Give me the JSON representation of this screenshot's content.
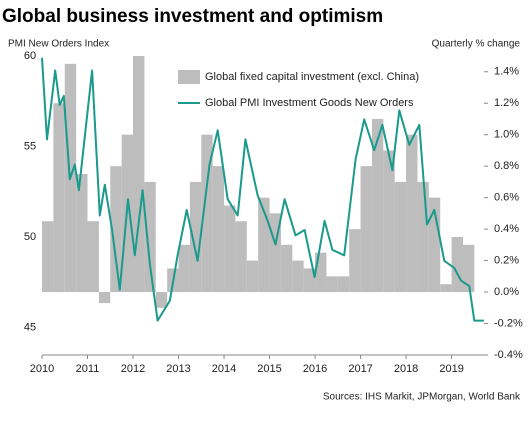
{
  "chart_data": {
    "type": "combo",
    "title": "Global business investment and optimism",
    "y_label": "PMI New Orders Index",
    "y2_label": "Quarterly  % change",
    "source": "Sources: IHS Markit, JPMorgan, World Bank",
    "xlim": [
      2010,
      2019.8
    ],
    "xticks": [
      2010,
      2011,
      2012,
      2013,
      2014,
      2015,
      2016,
      2017,
      2018,
      2019
    ],
    "ylim": [
      43.5,
      60
    ],
    "yticks": [
      45,
      50,
      55,
      60
    ],
    "y2lim": [
      -0.4,
      1.5
    ],
    "y2ticks": [
      {
        "value": -0.4,
        "label": "-0.4%"
      },
      {
        "value": -0.2,
        "label": "-0.2%"
      },
      {
        "value": 0,
        "label": "0.0%"
      },
      {
        "value": 0.2,
        "label": "0.2%"
      },
      {
        "value": 0.4,
        "label": "0.4%"
      },
      {
        "value": 0.6,
        "label": "0.6%"
      },
      {
        "value": 0.8,
        "label": "0.8%"
      },
      {
        "value": 1.0,
        "label": "1.0%"
      },
      {
        "value": 1.2,
        "label": "1.2%"
      },
      {
        "value": 1.4,
        "label": "1.4%"
      }
    ],
    "series": [
      {
        "name": "Global fixed capital investment (excl. China)",
        "type": "bar",
        "axis": "y2",
        "color": "#bdbdbd",
        "x": [
          2010,
          2010.25,
          2010.5,
          2010.75,
          2011,
          2011.25,
          2011.5,
          2011.75,
          2012,
          2012.25,
          2012.5,
          2012.75,
          2013,
          2013.25,
          2013.5,
          2013.75,
          2014,
          2014.25,
          2014.5,
          2014.75,
          2015,
          2015.25,
          2015.5,
          2015.75,
          2016,
          2016.25,
          2016.5,
          2016.75,
          2017,
          2017.25,
          2017.5,
          2017.75,
          2018,
          2018.25,
          2018.5,
          2018.75,
          2019,
          2019.25
        ],
        "values": [
          0.45,
          1.2,
          1.45,
          0.75,
          0.45,
          -0.07,
          0.8,
          1.0,
          1.5,
          0.7,
          -0.1,
          0.15,
          0.3,
          0.7,
          1.0,
          0.8,
          0.55,
          0.45,
          0.2,
          0.6,
          0.5,
          0.3,
          0.2,
          0.15,
          0.25,
          0.1,
          0.1,
          0.4,
          0.8,
          1.1,
          0.9,
          0.7,
          1.0,
          0.7,
          0.6,
          0.05,
          0.35,
          0.3
        ]
      },
      {
        "name": "Global PMI Investment Goods New Orders",
        "type": "line",
        "color": "#1a9a8c",
        "x": [
          2010,
          2010.11,
          2010.29,
          2010.39,
          2010.48,
          2010.61,
          2010.72,
          2010.81,
          2011.1,
          2011.27,
          2011.38,
          2011.54,
          2011.71,
          2011.89,
          2012.04,
          2012.21,
          2012.37,
          2012.54,
          2012.81,
          2012.98,
          2013.18,
          2013.42,
          2013.68,
          2013.86,
          2014.08,
          2014.3,
          2014.47,
          2014.74,
          2014.96,
          2015.13,
          2015.33,
          2015.57,
          2015.77,
          2015.99,
          2016.21,
          2016.38,
          2016.64,
          2016.89,
          2017.08,
          2017.3,
          2017.48,
          2017.7,
          2017.85,
          2018.07,
          2018.29,
          2018.46,
          2018.62,
          2018.84,
          2019.06,
          2019.21,
          2019.39,
          2019.5,
          2019.71
        ],
        "values": [
          59.9,
          55.4,
          59.2,
          57.3,
          57.8,
          53.2,
          54.0,
          52.6,
          59.2,
          51.2,
          52.9,
          50.4,
          47.1,
          52.1,
          49.0,
          52.6,
          48.5,
          45.4,
          46.5,
          49.0,
          51.5,
          48.7,
          54.0,
          55.9,
          52.1,
          51.2,
          55.4,
          52.3,
          50.9,
          49.6,
          52.1,
          50.1,
          50.4,
          47.8,
          50.9,
          49.3,
          49.0,
          54.3,
          56.5,
          54.8,
          56.2,
          53.7,
          57.0,
          55.1,
          56.2,
          50.7,
          51.5,
          48.7,
          48.3,
          47.6,
          47.3,
          45.4,
          45.4
        ]
      }
    ]
  }
}
